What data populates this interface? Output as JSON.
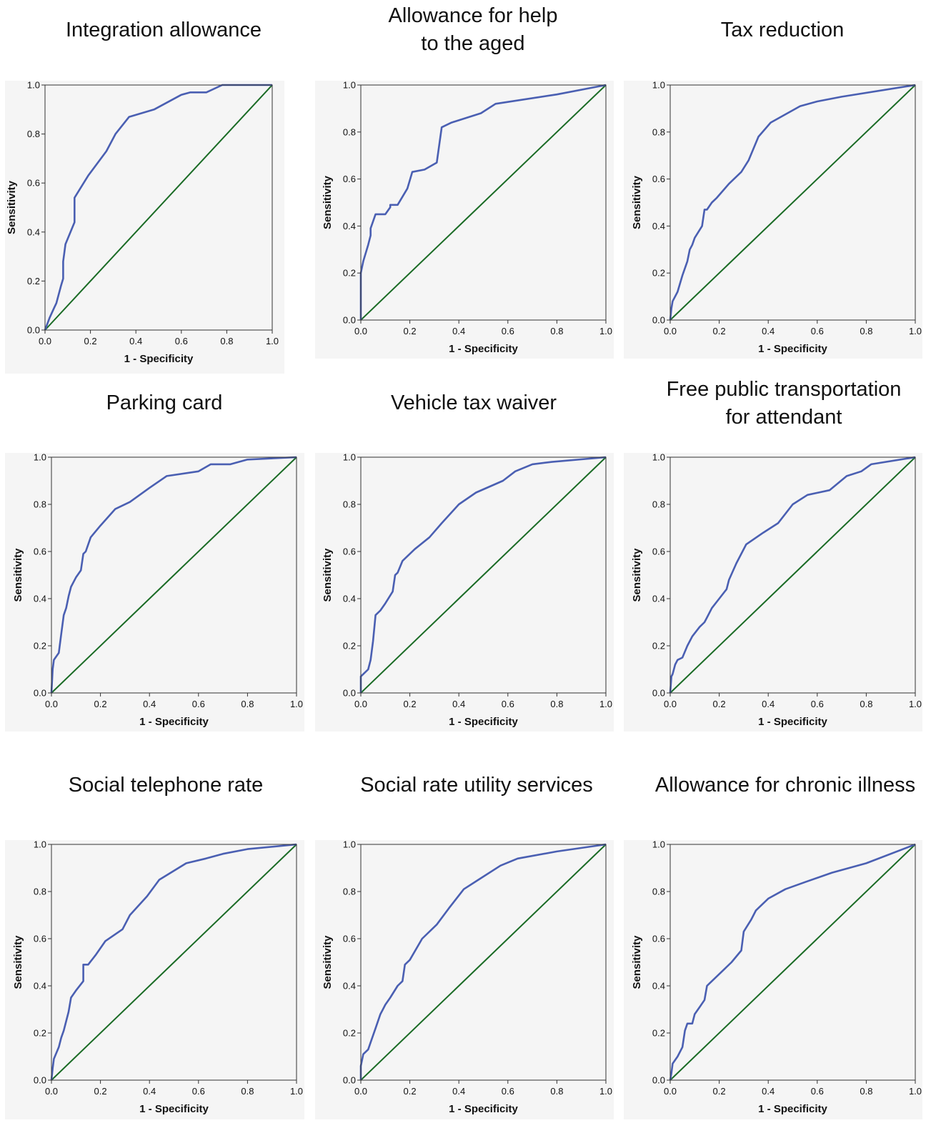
{
  "colors": {
    "roc_curve": "#4a5fb2",
    "reference_line": "#1a6b25",
    "plot_background": "#f5f5f5",
    "axes_frame": "#333333"
  },
  "chart_data": [
    {
      "type": "line",
      "title": "Integration allowance",
      "xlabel": "1 - Specificity",
      "ylabel": "Sensitivity",
      "xlim": [
        0,
        1
      ],
      "ylim": [
        0,
        1
      ],
      "xticks": [
        "0.0",
        "0.2",
        "0.4",
        "0.6",
        "0.8",
        "1.0"
      ],
      "yticks": [
        "0.0",
        "0.2",
        "0.4",
        "0.6",
        "0.8",
        "1.0"
      ],
      "grid": false,
      "series": [
        {
          "x": [
            0,
            0.02,
            0.04,
            0.05,
            0.07,
            0.08,
            0.08,
            0.09,
            0.13,
            0.13,
            0.19,
            0.27,
            0.31,
            0.37,
            0.48,
            0.6,
            0.64,
            0.71,
            0.78,
            0.8,
            1.0
          ],
          "y": [
            0,
            0.05,
            0.09,
            0.11,
            0.18,
            0.21,
            0.28,
            0.35,
            0.44,
            0.54,
            0.63,
            0.73,
            0.8,
            0.87,
            0.9,
            0.96,
            0.97,
            0.97,
            1.0,
            1.0,
            1.0
          ]
        }
      ],
      "reference_line": {
        "x": [
          0,
          1
        ],
        "y": [
          0,
          1
        ]
      }
    },
    {
      "type": "line",
      "title": "Allowance for help to the aged",
      "title_lines": [
        "Allowance for help",
        "to the aged"
      ],
      "xlabel": "1 - Specificity",
      "ylabel": "Sensitivity",
      "xlim": [
        0,
        1
      ],
      "ylim": [
        0,
        1
      ],
      "xticks": [
        "0.0",
        "0.2",
        "0.4",
        "0.6",
        "0.8",
        "1.0"
      ],
      "yticks": [
        "0.0",
        "0.2",
        "0.4",
        "0.6",
        "0.8",
        "1.0"
      ],
      "grid": false,
      "series": [
        {
          "x": [
            0,
            0,
            0.01,
            0.03,
            0.04,
            0.04,
            0.06,
            0.1,
            0.12,
            0.12,
            0.15,
            0.19,
            0.21,
            0.26,
            0.31,
            0.33,
            0.37,
            0.49,
            0.55,
            0.8,
            1.0
          ],
          "y": [
            0,
            0.2,
            0.25,
            0.32,
            0.36,
            0.39,
            0.45,
            0.45,
            0.48,
            0.49,
            0.49,
            0.56,
            0.63,
            0.64,
            0.67,
            0.82,
            0.84,
            0.88,
            0.92,
            0.96,
            1.0
          ]
        }
      ],
      "reference_line": {
        "x": [
          0,
          1
        ],
        "y": [
          0,
          1
        ]
      }
    },
    {
      "type": "line",
      "title": "Tax reduction",
      "xlabel": "1 - Specificity",
      "ylabel": "Sensitivity",
      "xlim": [
        0,
        1
      ],
      "ylim": [
        0,
        1
      ],
      "xticks": [
        "0.0",
        "0.2",
        "0.4",
        "0.6",
        "0.8",
        "1.0"
      ],
      "yticks": [
        "0.0",
        "0.2",
        "0.4",
        "0.6",
        "0.8",
        "1.0"
      ],
      "grid": false,
      "series": [
        {
          "x": [
            0,
            0.005,
            0.01,
            0.03,
            0.05,
            0.07,
            0.08,
            0.09,
            0.1,
            0.13,
            0.14,
            0.15,
            0.17,
            0.19,
            0.24,
            0.29,
            0.32,
            0.36,
            0.41,
            0.53,
            0.6,
            0.7,
            1.0
          ],
          "y": [
            0,
            0.05,
            0.08,
            0.12,
            0.19,
            0.25,
            0.3,
            0.32,
            0.35,
            0.4,
            0.47,
            0.47,
            0.5,
            0.52,
            0.58,
            0.63,
            0.68,
            0.78,
            0.84,
            0.91,
            0.93,
            0.95,
            1.0
          ]
        }
      ],
      "reference_line": {
        "x": [
          0,
          1
        ],
        "y": [
          0,
          1
        ]
      }
    },
    {
      "type": "line",
      "title": "Parking card",
      "xlabel": "1 - Specificity",
      "ylabel": "Sensitivity",
      "xlim": [
        0,
        1
      ],
      "ylim": [
        0,
        1
      ],
      "xticks": [
        "0.0",
        "0.2",
        "0.4",
        "0.6",
        "0.8",
        "1.0"
      ],
      "yticks": [
        "0.0",
        "0.2",
        "0.4",
        "0.6",
        "0.8",
        "1.0"
      ],
      "grid": false,
      "series": [
        {
          "x": [
            0,
            0.005,
            0.01,
            0.03,
            0.04,
            0.05,
            0.06,
            0.07,
            0.08,
            0.1,
            0.12,
            0.13,
            0.14,
            0.16,
            0.2,
            0.26,
            0.32,
            0.4,
            0.47,
            0.6,
            0.65,
            0.73,
            0.8,
            1.0
          ],
          "y": [
            0,
            0.1,
            0.14,
            0.17,
            0.25,
            0.33,
            0.36,
            0.41,
            0.45,
            0.49,
            0.52,
            0.59,
            0.6,
            0.66,
            0.71,
            0.78,
            0.81,
            0.87,
            0.92,
            0.94,
            0.97,
            0.97,
            0.99,
            1.0
          ]
        }
      ],
      "reference_line": {
        "x": [
          0,
          1
        ],
        "y": [
          0,
          1
        ]
      }
    },
    {
      "type": "line",
      "title": "Vehicle tax waiver",
      "xlabel": "1 - Specificity",
      "ylabel": "Sensitivity",
      "xlim": [
        0,
        1
      ],
      "ylim": [
        0,
        1
      ],
      "xticks": [
        "0.0",
        "0.2",
        "0.4",
        "0.6",
        "0.8",
        "1.0"
      ],
      "yticks": [
        "0.0",
        "0.2",
        "0.4",
        "0.6",
        "0.8",
        "1.0"
      ],
      "grid": false,
      "series": [
        {
          "x": [
            0,
            0,
            0.03,
            0.04,
            0.05,
            0.06,
            0.08,
            0.1,
            0.13,
            0.14,
            0.15,
            0.17,
            0.22,
            0.28,
            0.33,
            0.4,
            0.47,
            0.58,
            0.63,
            0.7,
            0.78,
            1.0
          ],
          "y": [
            0,
            0.07,
            0.1,
            0.14,
            0.22,
            0.33,
            0.35,
            0.38,
            0.43,
            0.5,
            0.51,
            0.56,
            0.61,
            0.66,
            0.72,
            0.8,
            0.85,
            0.9,
            0.94,
            0.97,
            0.98,
            1.0
          ]
        }
      ],
      "reference_line": {
        "x": [
          0,
          1
        ],
        "y": [
          0,
          1
        ]
      }
    },
    {
      "type": "line",
      "title": "Free public transportation for attendant",
      "title_lines": [
        "Free public transportation",
        "for attendant"
      ],
      "xlabel": "1 - Specificity",
      "ylabel": "Sensitivity",
      "xlim": [
        0,
        1
      ],
      "ylim": [
        0,
        1
      ],
      "xticks": [
        "0.0",
        "0.2",
        "0.4",
        "0.6",
        "0.8",
        "1.0"
      ],
      "yticks": [
        "0.0",
        "0.2",
        "0.4",
        "0.6",
        "0.8",
        "1.0"
      ],
      "grid": false,
      "series": [
        {
          "x": [
            0,
            0.005,
            0.01,
            0.02,
            0.03,
            0.05,
            0.07,
            0.09,
            0.12,
            0.14,
            0.15,
            0.17,
            0.2,
            0.23,
            0.24,
            0.27,
            0.31,
            0.38,
            0.44,
            0.5,
            0.56,
            0.65,
            0.72,
            0.78,
            0.82,
            1.0
          ],
          "y": [
            0,
            0.07,
            0.08,
            0.12,
            0.14,
            0.15,
            0.2,
            0.24,
            0.28,
            0.3,
            0.32,
            0.36,
            0.4,
            0.44,
            0.48,
            0.55,
            0.63,
            0.68,
            0.72,
            0.8,
            0.84,
            0.86,
            0.92,
            0.94,
            0.97,
            1.0
          ]
        }
      ],
      "reference_line": {
        "x": [
          0,
          1
        ],
        "y": [
          0,
          1
        ]
      }
    },
    {
      "type": "line",
      "title": "Social telephone rate",
      "xlabel": "1 - Specificity",
      "ylabel": "Sensitivity",
      "xlim": [
        0,
        1
      ],
      "ylim": [
        0,
        1
      ],
      "xticks": [
        "0.0",
        "0.2",
        "0.4",
        "0.6",
        "0.8",
        "1.0"
      ],
      "yticks": [
        "0.0",
        "0.2",
        "0.4",
        "0.6",
        "0.8",
        "1.0"
      ],
      "grid": false,
      "series": [
        {
          "x": [
            0,
            0.005,
            0.01,
            0.03,
            0.04,
            0.05,
            0.06,
            0.07,
            0.08,
            0.1,
            0.13,
            0.13,
            0.15,
            0.18,
            0.22,
            0.29,
            0.32,
            0.39,
            0.44,
            0.55,
            0.63,
            0.7,
            0.8,
            1.0
          ],
          "y": [
            0,
            0.05,
            0.09,
            0.14,
            0.18,
            0.21,
            0.25,
            0.29,
            0.35,
            0.38,
            0.42,
            0.49,
            0.49,
            0.53,
            0.59,
            0.64,
            0.7,
            0.78,
            0.85,
            0.92,
            0.94,
            0.96,
            0.98,
            1.0
          ]
        }
      ],
      "reference_line": {
        "x": [
          0,
          1
        ],
        "y": [
          0,
          1
        ]
      }
    },
    {
      "type": "line",
      "title": "Social rate utility services",
      "xlabel": "1 - Specificity",
      "ylabel": "Sensitivity",
      "xlim": [
        0,
        1
      ],
      "ylim": [
        0,
        1
      ],
      "xticks": [
        "0.0",
        "0.2",
        "0.4",
        "0.6",
        "0.8",
        "1.0"
      ],
      "yticks": [
        "0.0",
        "0.2",
        "0.4",
        "0.6",
        "0.8",
        "1.0"
      ],
      "grid": false,
      "series": [
        {
          "x": [
            0,
            0,
            0.01,
            0.03,
            0.04,
            0.06,
            0.08,
            0.09,
            0.1,
            0.12,
            0.15,
            0.17,
            0.18,
            0.2,
            0.25,
            0.31,
            0.36,
            0.42,
            0.48,
            0.57,
            0.64,
            0.8,
            1.0
          ],
          "y": [
            0,
            0.06,
            0.11,
            0.13,
            0.16,
            0.22,
            0.28,
            0.3,
            0.32,
            0.35,
            0.4,
            0.42,
            0.49,
            0.51,
            0.6,
            0.66,
            0.73,
            0.81,
            0.85,
            0.91,
            0.94,
            0.97,
            1.0
          ]
        }
      ],
      "reference_line": {
        "x": [
          0,
          1
        ],
        "y": [
          0,
          1
        ]
      }
    },
    {
      "type": "line",
      "title": "Allowance for chronic illness",
      "xlabel": "1 - Specificity",
      "ylabel": "Sensitivity",
      "xlim": [
        0,
        1
      ],
      "ylim": [
        0,
        1
      ],
      "xticks": [
        "0.0",
        "0.2",
        "0.4",
        "0.6",
        "0.8",
        "1.0"
      ],
      "yticks": [
        "0.0",
        "0.2",
        "0.4",
        "0.6",
        "0.8",
        "1.0"
      ],
      "grid": false,
      "series": [
        {
          "x": [
            0,
            0.005,
            0.01,
            0.03,
            0.05,
            0.06,
            0.07,
            0.09,
            0.1,
            0.12,
            0.14,
            0.15,
            0.16,
            0.19,
            0.25,
            0.29,
            0.3,
            0.33,
            0.35,
            0.4,
            0.47,
            0.55,
            0.66,
            0.8,
            1.0
          ],
          "y": [
            0,
            0.03,
            0.07,
            0.1,
            0.14,
            0.21,
            0.24,
            0.24,
            0.28,
            0.31,
            0.34,
            0.4,
            0.41,
            0.44,
            0.5,
            0.55,
            0.63,
            0.68,
            0.72,
            0.77,
            0.81,
            0.84,
            0.88,
            0.92,
            1.0
          ]
        }
      ],
      "reference_line": {
        "x": [
          0,
          1
        ],
        "y": [
          0,
          1
        ]
      }
    }
  ]
}
